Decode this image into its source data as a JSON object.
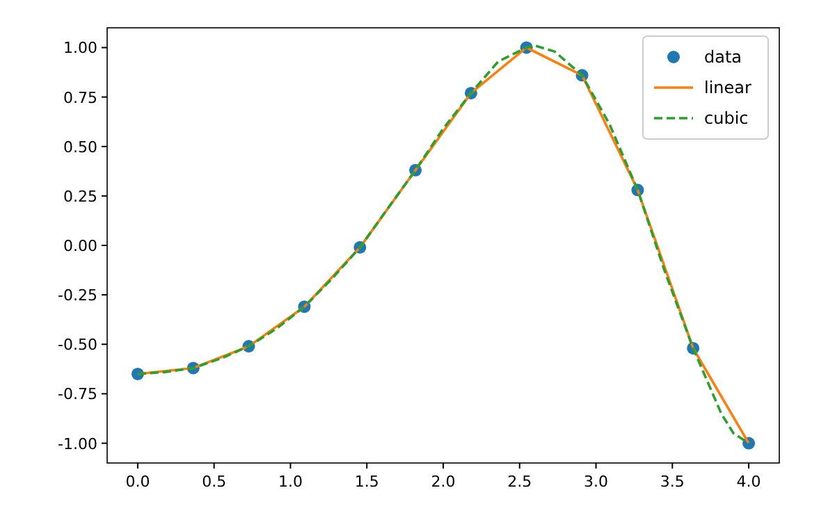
{
  "chart_data": {
    "type": "line",
    "x": [
      0,
      0.364,
      0.727,
      1.091,
      1.455,
      1.818,
      2.182,
      2.545,
      2.909,
      3.273,
      3.636,
      4.0
    ],
    "series": [
      {
        "name": "data",
        "type": "scatter",
        "marker": "circle",
        "color": "#1f77b4",
        "values": [
          -0.65,
          -0.62,
          -0.51,
          -0.31,
          -0.01,
          0.38,
          0.77,
          1.0,
          0.86,
          0.28,
          -0.52,
          -1.0
        ]
      },
      {
        "name": "linear",
        "line_style": "solid",
        "color": "#ff7f0e",
        "values": [
          -0.65,
          -0.62,
          -0.51,
          -0.31,
          -0.01,
          0.38,
          0.77,
          1.0,
          0.86,
          0.28,
          -0.52,
          -1.0
        ]
      },
      {
        "name": "cubic",
        "line_style": "dashed",
        "color": "#2ca02c",
        "x": [
          0,
          0.18,
          0.364,
          0.55,
          0.727,
          0.91,
          1.091,
          1.27,
          1.455,
          1.64,
          1.818,
          2.0,
          2.182,
          2.36,
          2.545,
          2.6,
          2.73,
          2.909,
          3.09,
          3.273,
          3.45,
          3.636,
          3.82,
          3.9,
          4.0
        ],
        "values": [
          -0.65,
          -0.64,
          -0.62,
          -0.57,
          -0.51,
          -0.42,
          -0.31,
          -0.17,
          -0.01,
          0.19,
          0.38,
          0.59,
          0.77,
          0.93,
          1.0,
          1.01,
          0.98,
          0.86,
          0.61,
          0.28,
          -0.13,
          -0.52,
          -0.85,
          -0.95,
          -1.0
        ]
      }
    ],
    "xlim": [
      -0.2,
      4.2
    ],
    "xticks": [
      {
        "value": 0,
        "label": "0.0"
      },
      {
        "value": 0.5,
        "label": "0.5"
      },
      {
        "value": 1,
        "label": "1.0"
      },
      {
        "value": 1.5,
        "label": "1.5"
      },
      {
        "value": 2,
        "label": "2.0"
      },
      {
        "value": 2.5,
        "label": "2.5"
      },
      {
        "value": 3,
        "label": "3.0"
      },
      {
        "value": 3.5,
        "label": "3.5"
      },
      {
        "value": 4,
        "label": "4.0"
      }
    ],
    "ylim": [
      -1.1,
      1.1
    ],
    "yticks": [
      {
        "value": -1,
        "label": "-1.00"
      },
      {
        "value": -0.75,
        "label": "-0.75"
      },
      {
        "value": -0.5,
        "label": "-0.50"
      },
      {
        "value": -0.25,
        "label": "-0.25"
      },
      {
        "value": 0,
        "label": "0.00"
      },
      {
        "value": 0.25,
        "label": "0.25"
      },
      {
        "value": 0.5,
        "label": "0.50"
      },
      {
        "value": 0.75,
        "label": "0.75"
      },
      {
        "value": 1,
        "label": "1.00"
      }
    ],
    "legend": "top right"
  }
}
